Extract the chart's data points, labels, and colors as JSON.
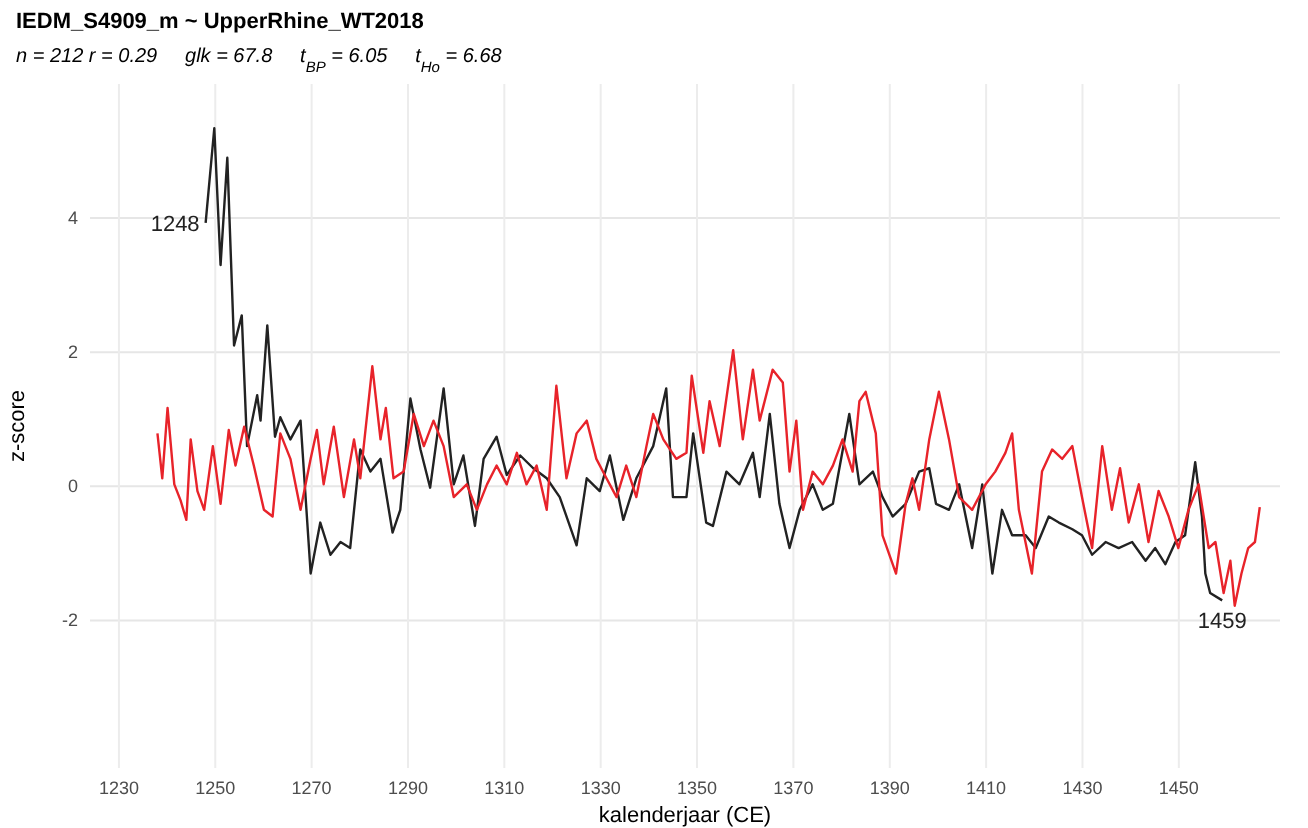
{
  "chart_data": {
    "type": "line",
    "title": "IEDM_S4909_m ~ UpperRhine_WT2018",
    "subtitle": "n = 212 r = 0.29     glk = 67.8     t$_{BP}$ = 6.05     t$_{Ho}$ = 6.68",
    "xlabel": "kalenderjaar (CE)",
    "ylabel": "z-score",
    "xlim": [
      1224,
      1471
    ],
    "xticks": [
      1230,
      1250,
      1270,
      1290,
      1310,
      1330,
      1350,
      1370,
      1390,
      1410,
      1430,
      1450
    ],
    "ylim": [
      -4.2,
      6
    ],
    "yticks": [
      -2,
      0,
      2,
      4
    ],
    "grid": true,
    "line_style": "solid",
    "annotations": [
      {
        "text": "1248",
        "x": 1248,
        "y": 3.93
      },
      {
        "text": "1459",
        "x": 1459,
        "y": -1.7
      }
    ],
    "series": [
      {
        "color": "#222222",
        "x": [
          1248,
          1249.8,
          1251.1,
          1252.5,
          1253.9,
          1255.5,
          1256.6,
          1258.7,
          1259.4,
          1260.8,
          1262.4,
          1263.5,
          1265.6,
          1267.7,
          1269.8,
          1271.8,
          1273.9,
          1276,
          1278,
          1280.1,
          1282.2,
          1284.3,
          1286.8,
          1288.4,
          1290.5,
          1292.6,
          1294.6,
          1297.4,
          1299.5,
          1301.5,
          1303.9,
          1305.7,
          1308.4,
          1310.5,
          1313.3,
          1316,
          1318.8,
          1321.5,
          1325,
          1327.1,
          1329.8,
          1331.9,
          1334.7,
          1337.4,
          1340.9,
          1343.6,
          1345,
          1347.8,
          1349.2,
          1351.9,
          1353.3,
          1356.1,
          1358.8,
          1361.6,
          1363,
          1365.1,
          1367.1,
          1369.2,
          1371.3,
          1374,
          1376.1,
          1378.2,
          1381.6,
          1383.7,
          1386.5,
          1388.5,
          1390.6,
          1393.3,
          1396.1,
          1398.2,
          1399.6,
          1402.3,
          1404.4,
          1407.1,
          1409.2,
          1411.3,
          1413.3,
          1415.4,
          1418.2,
          1420.3,
          1423,
          1425.1,
          1427.9,
          1429.9,
          1432,
          1434.8,
          1437.5,
          1440.3,
          1443.1,
          1445.1,
          1447.2,
          1449.3,
          1451.3,
          1453.4,
          1454.8,
          1455.5,
          1456.5,
          1459
        ],
        "values": [
          3.93,
          5.34,
          3.3,
          4.9,
          2.1,
          2.55,
          0.6,
          1.36,
          0.98,
          2.4,
          0.74,
          1.03,
          0.7,
          0.98,
          -1.3,
          -0.54,
          -1.02,
          -0.83,
          -0.92,
          0.55,
          0.22,
          0.41,
          -0.69,
          -0.35,
          1.31,
          0.55,
          -0.02,
          1.46,
          0.03,
          0.46,
          -0.59,
          0.41,
          0.74,
          0.17,
          0.46,
          0.27,
          0.12,
          -0.16,
          -0.88,
          0.12,
          -0.07,
          0.46,
          -0.5,
          0.12,
          0.6,
          1.46,
          -0.16,
          -0.16,
          0.79,
          -0.54,
          -0.59,
          0.22,
          0.03,
          0.5,
          -0.16,
          1.08,
          -0.26,
          -0.92,
          -0.35,
          0.03,
          -0.35,
          -0.26,
          1.08,
          0.03,
          0.22,
          -0.16,
          -0.45,
          -0.26,
          0.22,
          0.27,
          -0.26,
          -0.35,
          0.03,
          -0.92,
          0.03,
          -1.3,
          -0.35,
          -0.73,
          -0.73,
          -0.92,
          -0.45,
          -0.54,
          -0.64,
          -0.73,
          -1.02,
          -0.83,
          -0.92,
          -0.83,
          -1.11,
          -0.92,
          -1.16,
          -0.83,
          -0.73,
          0.36,
          -0.45,
          -1.3,
          -1.59,
          -1.7
        ]
      },
      {
        "color": "#e8232a",
        "x": [
          1238,
          1239,
          1240.1,
          1241.5,
          1242.8,
          1244,
          1244.9,
          1246.3,
          1247.7,
          1249.5,
          1251.1,
          1252.8,
          1254.2,
          1256,
          1258,
          1260.1,
          1261.9,
          1263.5,
          1265.6,
          1267.7,
          1269.8,
          1271.1,
          1272.5,
          1274.6,
          1276.7,
          1278.8,
          1280.1,
          1282.6,
          1284.3,
          1285.4,
          1287,
          1289.1,
          1291.2,
          1293.3,
          1295.3,
          1297.4,
          1299.5,
          1302.2,
          1304.3,
          1306.4,
          1308.4,
          1310.5,
          1312.6,
          1314.6,
          1316.7,
          1318.8,
          1320.8,
          1322.9,
          1325,
          1327.1,
          1329.1,
          1331.2,
          1333.3,
          1335.3,
          1337.4,
          1339.5,
          1340.9,
          1343,
          1345.7,
          1347.8,
          1348.9,
          1351.3,
          1352.6,
          1354.7,
          1357.5,
          1359.5,
          1361.6,
          1363,
          1365.7,
          1367.8,
          1369.2,
          1370.6,
          1372,
          1374,
          1376.1,
          1378.2,
          1380.2,
          1382.3,
          1383.7,
          1385,
          1387.1,
          1388.5,
          1391.3,
          1393.3,
          1394.7,
          1396.1,
          1398.2,
          1400.2,
          1402.3,
          1404.4,
          1407.1,
          1409.9,
          1411.9,
          1414,
          1415.4,
          1416.8,
          1419.5,
          1421.6,
          1423.7,
          1425.8,
          1427.9,
          1429.9,
          1432,
          1434.1,
          1436.1,
          1437.8,
          1439.6,
          1441.7,
          1443.7,
          1445.8,
          1447.9,
          1449.9,
          1452,
          1454.1,
          1456.2,
          1457.6,
          1459.3,
          1460.7,
          1461.6,
          1463,
          1464.4,
          1465.8,
          1466.8
        ],
        "values": [
          0.79,
          0.12,
          1.17,
          0.03,
          -0.21,
          -0.5,
          0.7,
          -0.07,
          -0.35,
          0.6,
          -0.26,
          0.84,
          0.31,
          0.89,
          0.31,
          -0.35,
          -0.45,
          0.79,
          0.41,
          -0.35,
          0.41,
          0.84,
          0.03,
          0.89,
          -0.16,
          0.7,
          0.12,
          1.79,
          0.7,
          1.17,
          0.12,
          0.22,
          1.08,
          0.6,
          0.98,
          0.6,
          -0.16,
          0.03,
          -0.35,
          0.03,
          0.31,
          0.03,
          0.5,
          0.03,
          0.31,
          -0.35,
          1.5,
          0.12,
          0.79,
          0.98,
          0.41,
          0.12,
          -0.16,
          0.31,
          -0.16,
          0.6,
          1.08,
          0.7,
          0.41,
          0.5,
          1.65,
          0.5,
          1.27,
          0.6,
          2.03,
          0.7,
          1.74,
          0.98,
          1.74,
          1.55,
          0.22,
          0.98,
          -0.35,
          0.22,
          0.03,
          0.31,
          0.7,
          0.22,
          1.27,
          1.41,
          0.79,
          -0.73,
          -1.3,
          -0.26,
          0.12,
          -0.35,
          0.7,
          1.41,
          0.7,
          -0.16,
          -0.35,
          0.03,
          0.22,
          0.5,
          0.79,
          -0.35,
          -1.3,
          0.22,
          0.55,
          0.41,
          0.6,
          -0.16,
          -0.92,
          0.6,
          -0.35,
          0.27,
          -0.54,
          0.03,
          -0.83,
          -0.07,
          -0.45,
          -0.92,
          -0.35,
          0.03,
          -0.92,
          -0.83,
          -1.59,
          -1.11,
          -1.78,
          -1.3,
          -0.92,
          -0.83,
          -0.31
        ]
      }
    ]
  }
}
